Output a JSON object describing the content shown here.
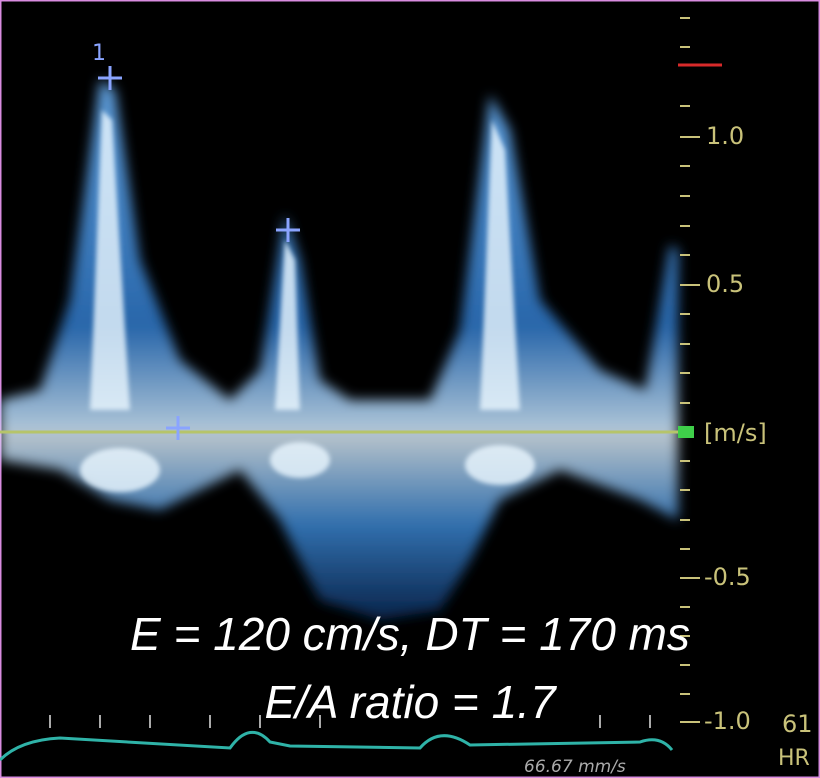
{
  "scale": {
    "labels": [
      "1.0",
      "0.5",
      "[m/s]",
      "-0.5",
      "-1.0"
    ]
  },
  "marker": {
    "label": "1"
  },
  "annotations": {
    "line1": "E = 120 cm/s, DT = 170 ms",
    "line2": "E/A ratio = 1.7"
  },
  "footer": {
    "speed": "66.67 mm/s",
    "hr_value": "61",
    "hr_label": "HR"
  }
}
